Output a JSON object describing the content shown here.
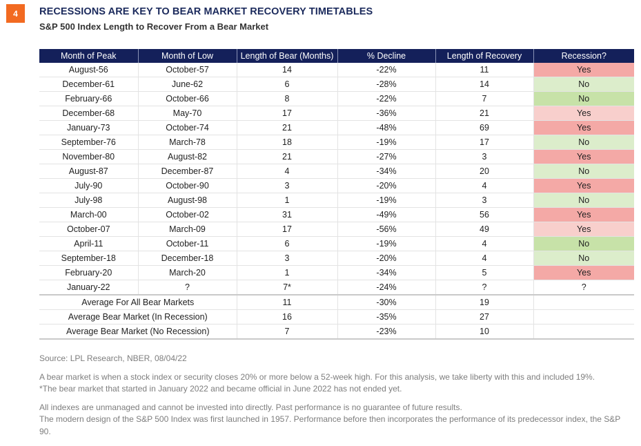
{
  "figure_number": "4",
  "title": "RECESSIONS ARE KEY TO BEAR MARKET RECOVERY TIMETABLES",
  "subtitle": "S&P 500 Index Length to Recover From a Bear Market",
  "colors": {
    "header_bg": "#14205a",
    "badge": "#f26a21",
    "yes_strong": "#f4a9a6",
    "yes_light": "#f8cfcc",
    "no_strong": "#c7e2a8",
    "no_light": "#dcedcb"
  },
  "table": {
    "headers": [
      "Month of Peak",
      "Month of Low",
      "Length of Bear (Months)",
      "% Decline",
      "Length of Recovery",
      "Recession?"
    ],
    "rows": [
      {
        "peak": "August-56",
        "low": "October-57",
        "length": "14",
        "decline": "-22%",
        "recovery": "11",
        "recession": "Yes",
        "shade": "yes-strong"
      },
      {
        "peak": "December-61",
        "low": "June-62",
        "length": "6",
        "decline": "-28%",
        "recovery": "14",
        "recession": "No",
        "shade": "no-light"
      },
      {
        "peak": "February-66",
        "low": "October-66",
        "length": "8",
        "decline": "-22%",
        "recovery": "7",
        "recession": "No",
        "shade": "no-strong"
      },
      {
        "peak": "December-68",
        "low": "May-70",
        "length": "17",
        "decline": "-36%",
        "recovery": "21",
        "recession": "Yes",
        "shade": "yes-light"
      },
      {
        "peak": "January-73",
        "low": "October-74",
        "length": "21",
        "decline": "-48%",
        "recovery": "69",
        "recession": "Yes",
        "shade": "yes-strong"
      },
      {
        "peak": "September-76",
        "low": "March-78",
        "length": "18",
        "decline": "-19%",
        "recovery": "17",
        "recession": "No",
        "shade": "no-light"
      },
      {
        "peak": "November-80",
        "low": "August-82",
        "length": "21",
        "decline": "-27%",
        "recovery": "3",
        "recession": "Yes",
        "shade": "yes-strong"
      },
      {
        "peak": "August-87",
        "low": "December-87",
        "length": "4",
        "decline": "-34%",
        "recovery": "20",
        "recession": "No",
        "shade": "no-light"
      },
      {
        "peak": "July-90",
        "low": "October-90",
        "length": "3",
        "decline": "-20%",
        "recovery": "4",
        "recession": "Yes",
        "shade": "yes-strong"
      },
      {
        "peak": "July-98",
        "low": "August-98",
        "length": "1",
        "decline": "-19%",
        "recovery": "3",
        "recession": "No",
        "shade": "no-light"
      },
      {
        "peak": "March-00",
        "low": "October-02",
        "length": "31",
        "decline": "-49%",
        "recovery": "56",
        "recession": "Yes",
        "shade": "yes-strong"
      },
      {
        "peak": "October-07",
        "low": "March-09",
        "length": "17",
        "decline": "-56%",
        "recovery": "49",
        "recession": "Yes",
        "shade": "yes-light"
      },
      {
        "peak": "April-11",
        "low": "October-11",
        "length": "6",
        "decline": "-19%",
        "recovery": "4",
        "recession": "No",
        "shade": "no-strong"
      },
      {
        "peak": "September-18",
        "low": "December-18",
        "length": "3",
        "decline": "-20%",
        "recovery": "4",
        "recession": "No",
        "shade": "no-light"
      },
      {
        "peak": "February-20",
        "low": "March-20",
        "length": "1",
        "decline": "-34%",
        "recovery": "5",
        "recession": "Yes",
        "shade": "yes-strong"
      },
      {
        "peak": "January-22",
        "low": "?",
        "length": "7*",
        "decline": "-24%",
        "recovery": "?",
        "recession": "?",
        "shade": ""
      }
    ],
    "averages": [
      {
        "label": "Average For All Bear Markets",
        "length": "11",
        "decline": "-30%",
        "recovery": "19"
      },
      {
        "label": "Average Bear Market (In Recession)",
        "length": "16",
        "decline": "-35%",
        "recovery": "27"
      },
      {
        "label": "Average Bear Market (No Recession)",
        "length": "7",
        "decline": "-23%",
        "recovery": "10"
      }
    ]
  },
  "notes": {
    "source": "Source: LPL Research, NBER,  08/04/22",
    "definition": "A bear market is when a stock index or security closes 20% or more below a 52-week high. For this analysis, we take liberty with this and included 19%.",
    "footnote": "*The bear market that started in January 2022 and became official in June 2022 has not ended yet.",
    "disclaimer": "All indexes are unmanaged and cannot be invested into directly. Past performance is no guarantee of future results.",
    "history": "The modern design of the S&P 500 Index was first launched in 1957. Performance before then incorporates the performance of its predecessor index, the S&P 90."
  }
}
